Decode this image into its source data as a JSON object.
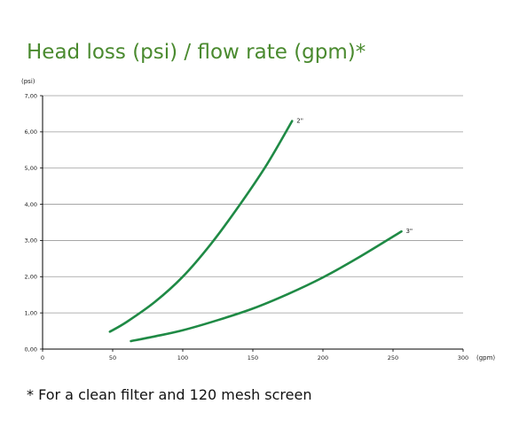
{
  "title": "Head loss (psi) / flow rate (gpm)*",
  "footnote": "* For a clean filter and 120 mesh screen",
  "colors": {
    "title": "#4a8a2f",
    "series": "#1f8a45",
    "grid": "#9a9a9a",
    "axis": "#000000"
  },
  "chart_data": {
    "type": "line",
    "title": "Head loss (psi) / flow rate (gpm)*",
    "xlabel": "(gpm)",
    "ylabel": "(psi)",
    "xlim": [
      0,
      300
    ],
    "ylim": [
      0,
      7
    ],
    "x_ticks": [
      0,
      50,
      100,
      150,
      200,
      250,
      300
    ],
    "x_tick_labels": [
      "0",
      "50",
      "100",
      "150",
      "200",
      "250",
      "300"
    ],
    "y_ticks": [
      0,
      1,
      2,
      3,
      4,
      5,
      6,
      7
    ],
    "y_tick_labels": [
      "0,00",
      "1,00",
      "2,00",
      "3,00",
      "4,00",
      "5,00",
      "6,00",
      "7,00"
    ],
    "grid": "horizontal",
    "series": [
      {
        "name": "2\"",
        "x": [
          48,
          60,
          80,
          100,
          120,
          140,
          160,
          178
        ],
        "y": [
          0.48,
          0.75,
          1.3,
          2.0,
          2.9,
          3.95,
          5.1,
          6.3
        ]
      },
      {
        "name": "3\"",
        "x": [
          63,
          80,
          100,
          125,
          150,
          175,
          200,
          225,
          256
        ],
        "y": [
          0.22,
          0.35,
          0.52,
          0.8,
          1.12,
          1.52,
          1.98,
          2.52,
          3.25
        ]
      }
    ]
  }
}
